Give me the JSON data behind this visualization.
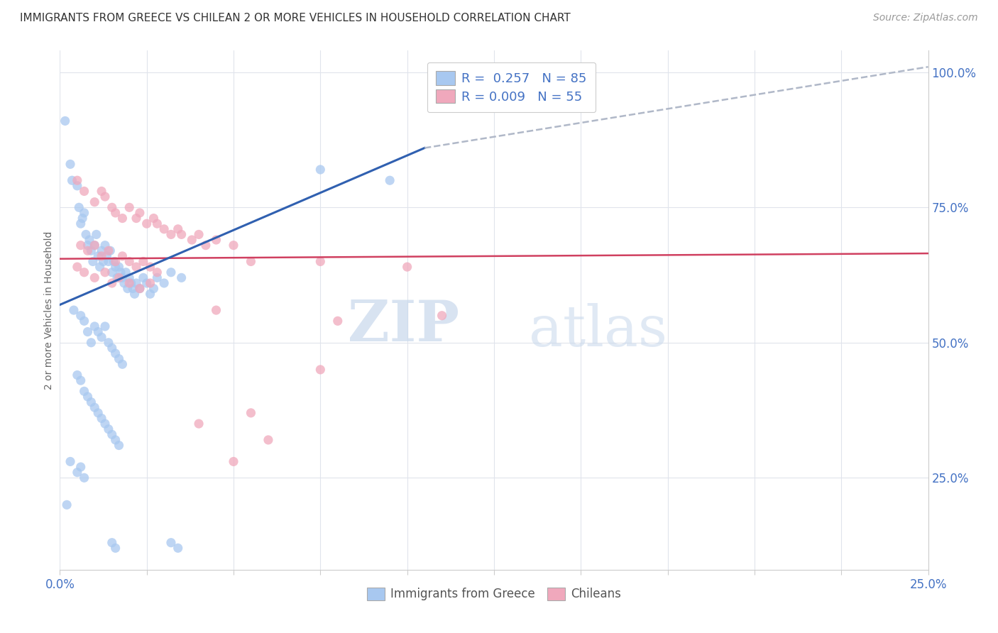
{
  "title": "IMMIGRANTS FROM GREECE VS CHILEAN 2 OR MORE VEHICLES IN HOUSEHOLD CORRELATION CHART",
  "source": "Source: ZipAtlas.com",
  "ylabel": "2 or more Vehicles in Household",
  "yticks": [
    25.0,
    50.0,
    75.0,
    100.0
  ],
  "xmin": 0.0,
  "xmax": 25.0,
  "ymin": 8.0,
  "ymax": 104.0,
  "legend_line1": "R =  0.257   N = 85",
  "legend_line2": "R = 0.009   N = 55",
  "color_blue": "#A8C8F0",
  "color_pink": "#F0A8BC",
  "color_blue_line": "#3060B0",
  "color_pink_line": "#D04060",
  "color_dash_line": "#B0B8C8",
  "color_axis_text": "#4472C4",
  "color_title": "#333333",
  "color_grid": "#E0E4EC",
  "blue_points": [
    [
      0.15,
      91.0
    ],
    [
      0.3,
      83.0
    ],
    [
      0.35,
      80.0
    ],
    [
      0.5,
      79.0
    ],
    [
      0.55,
      75.0
    ],
    [
      0.6,
      72.0
    ],
    [
      0.65,
      73.0
    ],
    [
      0.7,
      74.0
    ],
    [
      0.75,
      70.0
    ],
    [
      0.8,
      68.0
    ],
    [
      0.85,
      69.0
    ],
    [
      0.9,
      67.0
    ],
    [
      0.95,
      65.0
    ],
    [
      1.0,
      68.0
    ],
    [
      1.05,
      70.0
    ],
    [
      1.1,
      66.0
    ],
    [
      1.15,
      64.0
    ],
    [
      1.2,
      67.0
    ],
    [
      1.25,
      65.0
    ],
    [
      1.3,
      68.0
    ],
    [
      1.35,
      66.0
    ],
    [
      1.4,
      65.0
    ],
    [
      1.45,
      67.0
    ],
    [
      1.5,
      63.0
    ],
    [
      1.55,
      65.0
    ],
    [
      1.6,
      64.0
    ],
    [
      1.65,
      62.0
    ],
    [
      1.7,
      64.0
    ],
    [
      1.75,
      63.0
    ],
    [
      1.8,
      62.0
    ],
    [
      1.85,
      61.0
    ],
    [
      1.9,
      63.0
    ],
    [
      1.95,
      60.0
    ],
    [
      2.0,
      62.0
    ],
    [
      2.05,
      61.0
    ],
    [
      2.1,
      60.0
    ],
    [
      2.15,
      59.0
    ],
    [
      2.2,
      61.0
    ],
    [
      2.3,
      60.0
    ],
    [
      2.4,
      62.0
    ],
    [
      2.5,
      61.0
    ],
    [
      2.6,
      59.0
    ],
    [
      2.7,
      60.0
    ],
    [
      2.8,
      62.0
    ],
    [
      3.0,
      61.0
    ],
    [
      3.2,
      63.0
    ],
    [
      3.5,
      62.0
    ],
    [
      0.4,
      56.0
    ],
    [
      0.6,
      55.0
    ],
    [
      0.7,
      54.0
    ],
    [
      0.8,
      52.0
    ],
    [
      0.9,
      50.0
    ],
    [
      1.0,
      53.0
    ],
    [
      1.1,
      52.0
    ],
    [
      1.2,
      51.0
    ],
    [
      1.3,
      53.0
    ],
    [
      1.4,
      50.0
    ],
    [
      1.5,
      49.0
    ],
    [
      1.6,
      48.0
    ],
    [
      1.7,
      47.0
    ],
    [
      1.8,
      46.0
    ],
    [
      0.5,
      44.0
    ],
    [
      0.6,
      43.0
    ],
    [
      0.7,
      41.0
    ],
    [
      0.8,
      40.0
    ],
    [
      0.9,
      39.0
    ],
    [
      1.0,
      38.0
    ],
    [
      1.1,
      37.0
    ],
    [
      1.2,
      36.0
    ],
    [
      1.3,
      35.0
    ],
    [
      1.4,
      34.0
    ],
    [
      1.5,
      33.0
    ],
    [
      1.6,
      32.0
    ],
    [
      1.7,
      31.0
    ],
    [
      0.3,
      28.0
    ],
    [
      0.5,
      26.0
    ],
    [
      0.6,
      27.0
    ],
    [
      0.7,
      25.0
    ],
    [
      1.5,
      13.0
    ],
    [
      1.6,
      12.0
    ],
    [
      3.2,
      13.0
    ],
    [
      3.4,
      12.0
    ],
    [
      0.2,
      20.0
    ],
    [
      7.5,
      82.0
    ],
    [
      9.5,
      80.0
    ]
  ],
  "pink_points": [
    [
      0.5,
      80.0
    ],
    [
      0.7,
      78.0
    ],
    [
      1.0,
      76.0
    ],
    [
      1.2,
      78.0
    ],
    [
      1.3,
      77.0
    ],
    [
      1.5,
      75.0
    ],
    [
      1.6,
      74.0
    ],
    [
      1.8,
      73.0
    ],
    [
      2.0,
      75.0
    ],
    [
      2.2,
      73.0
    ],
    [
      2.3,
      74.0
    ],
    [
      2.5,
      72.0
    ],
    [
      2.7,
      73.0
    ],
    [
      2.8,
      72.0
    ],
    [
      3.0,
      71.0
    ],
    [
      3.2,
      70.0
    ],
    [
      3.4,
      71.0
    ],
    [
      3.5,
      70.0
    ],
    [
      3.8,
      69.0
    ],
    [
      4.0,
      70.0
    ],
    [
      4.2,
      68.0
    ],
    [
      4.5,
      69.0
    ],
    [
      5.0,
      68.0
    ],
    [
      0.6,
      68.0
    ],
    [
      0.8,
      67.0
    ],
    [
      1.0,
      68.0
    ],
    [
      1.2,
      66.0
    ],
    [
      1.4,
      67.0
    ],
    [
      1.6,
      65.0
    ],
    [
      1.8,
      66.0
    ],
    [
      2.0,
      65.0
    ],
    [
      2.2,
      64.0
    ],
    [
      2.4,
      65.0
    ],
    [
      2.6,
      64.0
    ],
    [
      2.8,
      63.0
    ],
    [
      0.5,
      64.0
    ],
    [
      0.7,
      63.0
    ],
    [
      1.0,
      62.0
    ],
    [
      1.3,
      63.0
    ],
    [
      1.5,
      61.0
    ],
    [
      1.7,
      62.0
    ],
    [
      2.0,
      61.0
    ],
    [
      2.3,
      60.0
    ],
    [
      2.6,
      61.0
    ],
    [
      5.5,
      65.0
    ],
    [
      7.5,
      65.0
    ],
    [
      10.0,
      64.0
    ],
    [
      4.5,
      56.0
    ],
    [
      8.0,
      54.0
    ],
    [
      7.5,
      45.0
    ],
    [
      11.0,
      55.0
    ],
    [
      5.5,
      37.0
    ],
    [
      4.0,
      35.0
    ],
    [
      6.0,
      32.0
    ],
    [
      5.0,
      28.0
    ]
  ],
  "blue_trendline_x": [
    0.0,
    10.5
  ],
  "blue_trendline_y": [
    57.0,
    86.0
  ],
  "dash_trendline_x": [
    10.5,
    25.0
  ],
  "dash_trendline_y": [
    86.0,
    101.0
  ],
  "pink_trendline_x": [
    0.0,
    25.0
  ],
  "pink_trendline_y": [
    65.5,
    66.5
  ]
}
